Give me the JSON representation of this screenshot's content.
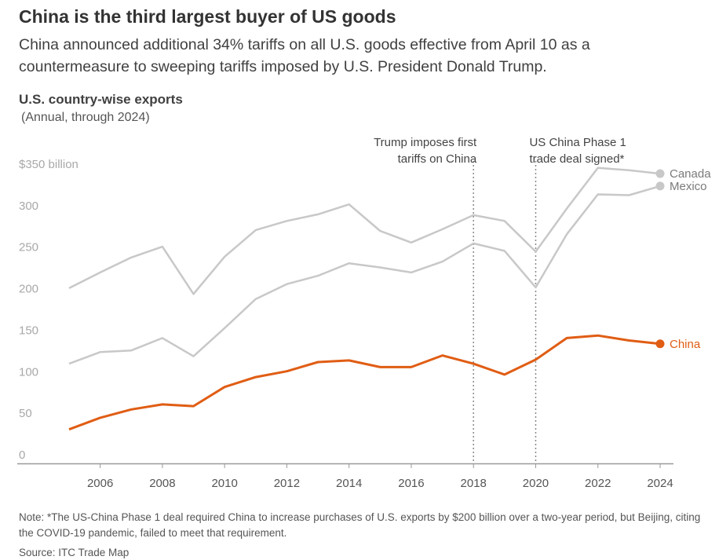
{
  "header": {
    "title": "China is the third largest buyer of US goods",
    "subtitle": "China announced additional 34% tariffs on all U.S. goods effective from April 10 as a countermeasure to sweeping tariffs imposed by U.S. President Donald Trump."
  },
  "colors": {
    "china": "#e05d14",
    "others": "#c8c8c8",
    "axis": "#999999",
    "tick_text": "#a8a8a8"
  },
  "chart_data": {
    "type": "line",
    "title": "U.S. country-wise exports",
    "subtitle": "(Annual, through 2024)",
    "x": [
      2005,
      2006,
      2007,
      2008,
      2009,
      2010,
      2011,
      2012,
      2013,
      2014,
      2015,
      2016,
      2017,
      2018,
      2019,
      2020,
      2021,
      2022,
      2023,
      2024
    ],
    "xticks": [
      2006,
      2008,
      2010,
      2012,
      2014,
      2016,
      2018,
      2020,
      2022,
      2024
    ],
    "yticks": [
      0,
      50,
      100,
      150,
      200,
      250,
      300,
      350
    ],
    "ytick_labels": [
      "0",
      "50",
      "100",
      "150",
      "200",
      "250",
      "300",
      "$350 billion"
    ],
    "ylim": [
      0,
      350
    ],
    "series": [
      {
        "name": "Canada",
        "highlight": false,
        "values": [
          211,
          230,
          248,
          261,
          204,
          249,
          281,
          292,
          300,
          312,
          280,
          266,
          282,
          299,
          292,
          255,
          307,
          356,
          353,
          349
        ]
      },
      {
        "name": "Mexico",
        "highlight": false,
        "values": [
          120,
          134,
          136,
          151,
          129,
          163,
          198,
          216,
          226,
          241,
          236,
          230,
          243,
          265,
          256,
          212,
          276,
          324,
          323,
          334
        ]
      },
      {
        "name": "China",
        "highlight": true,
        "values": [
          41,
          55,
          65,
          71,
          69,
          92,
          104,
          111,
          122,
          124,
          116,
          116,
          130,
          120,
          107,
          125,
          151,
          154,
          148,
          144
        ]
      }
    ],
    "annotations": [
      {
        "x": 2018,
        "text": "Trump imposes first tariffs on China",
        "lines": [
          "Trump imposes first",
          "tariffs on China"
        ]
      },
      {
        "x": 2020,
        "text": "US China Phase 1 trade deal signed*",
        "lines": [
          "US China Phase 1",
          "trade deal signed*"
        ]
      }
    ]
  },
  "footer": {
    "note": "Note: *The US-China Phase 1 deal required China to increase purchases of U.S. exports by $200 billion over a two-year period, but Beijing, citing the COVID-19 pandemic, failed to meet that requirement.",
    "source": "Source: ITC Trade Map"
  }
}
